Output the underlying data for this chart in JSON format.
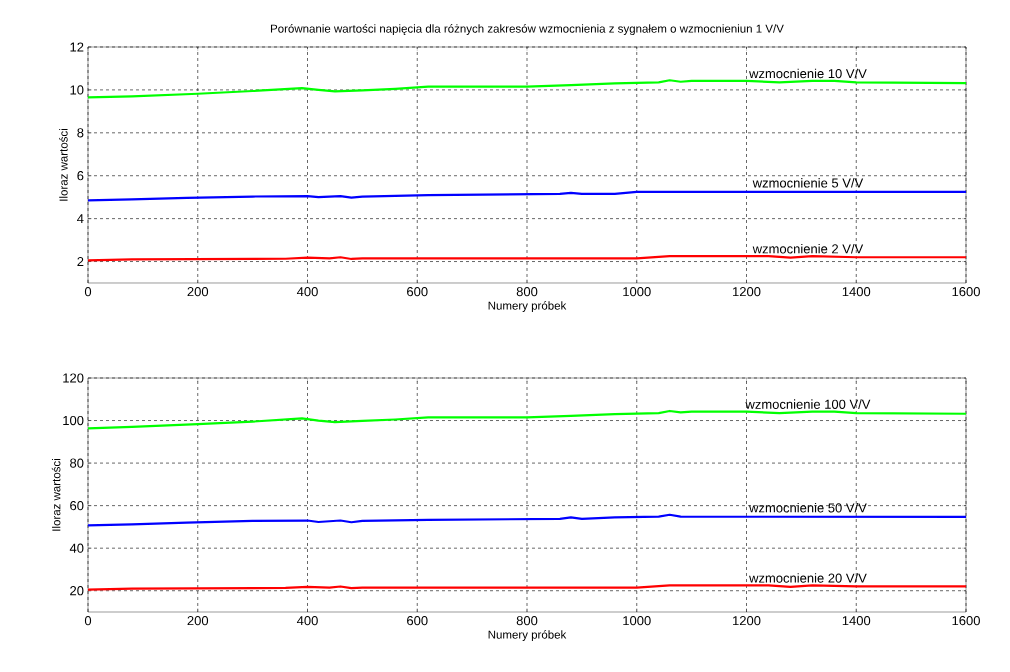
{
  "chart_data": [
    {
      "type": "line",
      "title": "Porównanie wartości napięcia dla różnych zakresów wzmocnienia z sygnałem o wzmocnieniun 1 V/V",
      "xlabel": "Numery próbek",
      "ylabel": "Iloraz wartości",
      "xlim": [
        0,
        1600
      ],
      "ylim": [
        1,
        12
      ],
      "xticks": [
        0,
        200,
        400,
        600,
        800,
        1000,
        1200,
        1400,
        1600
      ],
      "yticks": [
        2,
        4,
        6,
        8,
        10,
        12
      ],
      "grid": true,
      "series": [
        {
          "name": "wzmocnienie 10 V/V",
          "color": "#00ff00",
          "x": [
            0,
            80,
            200,
            300,
            390,
            420,
            450,
            500,
            560,
            620,
            800,
            880,
            960,
            1040,
            1060,
            1080,
            1100,
            1200,
            1260,
            1320,
            1360,
            1400,
            1600
          ],
          "values": [
            9.65,
            9.7,
            9.82,
            9.95,
            10.08,
            10.0,
            9.93,
            9.98,
            10.05,
            10.15,
            10.15,
            10.22,
            10.3,
            10.35,
            10.45,
            10.38,
            10.42,
            10.42,
            10.35,
            10.42,
            10.42,
            10.35,
            10.32
          ]
        },
        {
          "name": "wzmocnienie 5 V/V",
          "color": "#0000ff",
          "x": [
            0,
            80,
            180,
            300,
            400,
            420,
            460,
            480,
            500,
            620,
            860,
            880,
            900,
            960,
            1000,
            1600
          ],
          "values": [
            4.85,
            4.9,
            4.97,
            5.03,
            5.05,
            5.0,
            5.05,
            4.98,
            5.03,
            5.1,
            5.15,
            5.2,
            5.15,
            5.15,
            5.25,
            5.25
          ]
        },
        {
          "name": "wzmocnienie 2 V/V",
          "color": "#ff0000",
          "x": [
            0,
            80,
            360,
            400,
            440,
            460,
            480,
            500,
            1000,
            1040,
            1060,
            1240,
            1280,
            1320,
            1400,
            1600
          ],
          "values": [
            2.05,
            2.1,
            2.13,
            2.18,
            2.15,
            2.2,
            2.12,
            2.15,
            2.15,
            2.22,
            2.25,
            2.25,
            2.18,
            2.25,
            2.2,
            2.2
          ]
        }
      ]
    },
    {
      "type": "line",
      "xlabel": "Numery próbek",
      "ylabel": "Iloraz wartości",
      "xlim": [
        0,
        1600
      ],
      "ylim": [
        10,
        120
      ],
      "xticks": [
        0,
        200,
        400,
        600,
        800,
        1000,
        1200,
        1400,
        1600
      ],
      "yticks": [
        20,
        40,
        60,
        80,
        100,
        120
      ],
      "grid": true,
      "series": [
        {
          "name": "wzmocnienie 100 V/V",
          "color": "#00ff00",
          "x": [
            0,
            80,
            200,
            300,
            390,
            420,
            450,
            500,
            560,
            620,
            800,
            880,
            960,
            1040,
            1060,
            1080,
            1100,
            1200,
            1260,
            1320,
            1360,
            1400,
            1600
          ],
          "values": [
            96.3,
            97,
            98.3,
            99.5,
            101,
            100,
            99.3,
            99.8,
            100.5,
            101.5,
            101.5,
            102.2,
            103,
            103.5,
            104.5,
            103.8,
            104.2,
            104.2,
            103.5,
            104.2,
            104.2,
            103.5,
            103.2
          ]
        },
        {
          "name": "wzmocnienie 50 V/V",
          "color": "#0000ff",
          "x": [
            0,
            80,
            180,
            300,
            400,
            420,
            460,
            480,
            500,
            620,
            860,
            880,
            900,
            960,
            1040,
            1060,
            1080,
            1600
          ],
          "values": [
            50.7,
            51.2,
            52,
            52.8,
            53,
            52.3,
            53,
            52.2,
            52.8,
            53.3,
            53.8,
            54.5,
            53.8,
            54.5,
            54.8,
            55.7,
            54.8,
            54.7
          ]
        },
        {
          "name": "wzmocnienie 20 V/V",
          "color": "#ff0000",
          "x": [
            0,
            80,
            360,
            400,
            440,
            460,
            480,
            500,
            1000,
            1040,
            1060,
            1240,
            1280,
            1320,
            1400,
            1600
          ],
          "values": [
            20.5,
            21,
            21.3,
            21.8,
            21.5,
            22,
            21.2,
            21.5,
            21.5,
            22.2,
            22.5,
            22.5,
            21.8,
            22.5,
            22,
            22
          ]
        }
      ]
    }
  ]
}
